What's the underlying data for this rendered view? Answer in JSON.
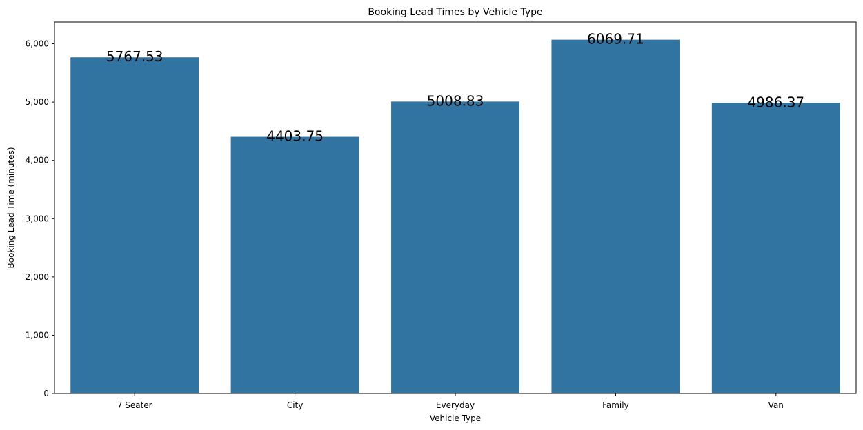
{
  "chart_data": {
    "type": "bar",
    "title": "Booking Lead Times by Vehicle Type",
    "xlabel": "Vehicle Type",
    "ylabel": "Booking Lead Time (minutes)",
    "categories": [
      "7 Seater",
      "City",
      "Everyday",
      "Family",
      "Van"
    ],
    "values": [
      5767.53,
      4403.75,
      5008.83,
      6069.71,
      4986.37
    ],
    "data_labels": [
      "5767.53",
      "4403.75",
      "5008.83",
      "6069.71",
      "4986.37"
    ],
    "ylim": [
      0,
      6373
    ],
    "yticks": [
      0,
      1000,
      2000,
      3000,
      4000,
      5000,
      6000
    ],
    "ytick_labels": [
      "0",
      "1,000",
      "2,000",
      "3,000",
      "4,000",
      "5,000",
      "6,000"
    ],
    "bar_color": "#3274a1",
    "grid": false,
    "legend": "none"
  }
}
